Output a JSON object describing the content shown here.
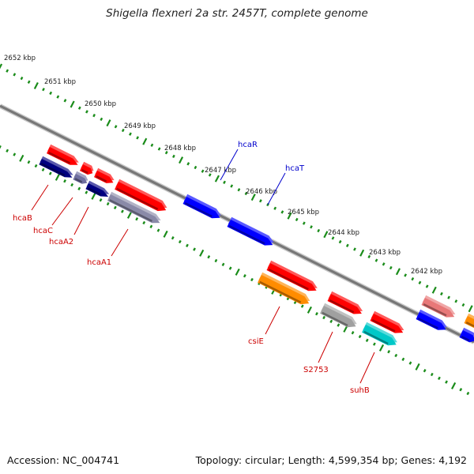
{
  "title": "Shigella flexneri 2a str. 2457T, complete genome",
  "accession": "Accession: NC_004741",
  "topology": "Topology: circular; Length: 4,599,354 bp; Genes: 4,192",
  "colors": {
    "backbone": "#888888",
    "ticks": "#1a8c1a",
    "plus_label": "#0000cc",
    "minus_label": "#cc0000",
    "red": "#ff0000",
    "blue": "#0000ff",
    "orange": "#ff8c00",
    "gray": "#a0a0a0",
    "cyan": "#00c8c8",
    "pink": "#e87878",
    "navy": "#000080"
  },
  "kbp_markers": [
    "2652 kbp",
    "2651 kbp",
    "2650 kbp",
    "2649 kbp",
    "2648 kbp",
    "2647 kbp",
    "2646 kbp",
    "2645 kbp",
    "2644 kbp",
    "2643 kbp",
    "2642 kbp"
  ],
  "gene_labels": {
    "hcaR": "hcaR",
    "hcaT": "hcaT",
    "hcaB": "hcaB",
    "hcaC": "hcaC",
    "hcaA2": "hcaA2",
    "hcaA1": "hcaA1",
    "csiE": "csiE",
    "S2753": "S2753",
    "suhB": "suhB"
  }
}
